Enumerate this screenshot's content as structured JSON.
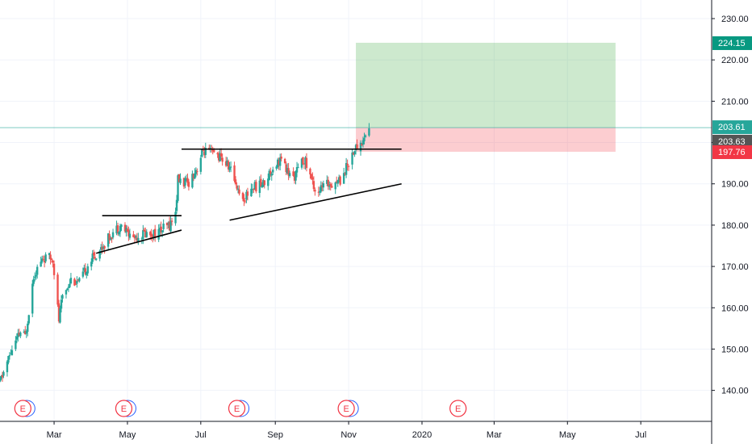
{
  "chart_data": {
    "type": "candlestick",
    "symbol": "",
    "y_axis": {
      "ticks": [
        "140.00",
        "150.00",
        "160.00",
        "170.00",
        "180.00",
        "190.00",
        "200.00",
        "210.00",
        "220.00",
        "230.00"
      ],
      "range": [
        132.5,
        234.5
      ]
    },
    "x_axis": {
      "ticks": [
        "Mar",
        "May",
        "Jul",
        "Sep",
        "Nov",
        "2020",
        "Mar",
        "May",
        "Jul"
      ]
    },
    "price_labels": [
      {
        "value": 224.15,
        "text": "224.15",
        "color": "#089981"
      },
      {
        "value": 203.61,
        "text": "203.61",
        "color": "#26a69a"
      },
      {
        "value": 203.63,
        "text": "203.63",
        "color": "#555555"
      },
      {
        "value": 197.76,
        "text": "197.76",
        "color": "#f23645"
      }
    ],
    "trade_box": {
      "entry": 203.63,
      "target": 224.15,
      "stop": 197.76,
      "start": "2019-11-07",
      "end": "2020-06-10"
    },
    "trendlines": [
      {
        "name": "resistance-may",
        "points": [
          [
            "2019-04-10",
            182.3
          ],
          [
            "2019-06-15",
            182.3
          ]
        ]
      },
      {
        "name": "support-may",
        "points": [
          [
            "2019-04-05",
            173.2
          ],
          [
            "2019-06-15",
            178.8
          ]
        ]
      },
      {
        "name": "resistance-main",
        "points": [
          [
            "2019-06-15",
            198.4
          ],
          [
            "2019-12-15",
            198.4
          ]
        ]
      },
      {
        "name": "support-main",
        "points": [
          [
            "2019-07-25",
            181.2
          ],
          [
            "2019-12-15",
            190.0
          ]
        ]
      }
    ],
    "earnings_markers": [
      {
        "label": "E",
        "date": "2019-02-03",
        "color": "#f23645"
      },
      {
        "label": "E",
        "date": "2019-04-28",
        "color": "#f23645"
      },
      {
        "label": "E",
        "date": "2019-07-31",
        "color": "#f23645"
      },
      {
        "label": "E",
        "date": "2019-10-30",
        "color": "#f23645"
      },
      {
        "label": "E",
        "date": "2020-01-31",
        "color": "#f23645"
      }
    ],
    "price_path": [
      [
        "2019-01-15",
        142
      ],
      [
        "2019-01-25",
        150
      ],
      [
        "2019-02-01",
        154
      ],
      [
        "2019-02-05",
        153
      ],
      [
        "2019-02-12",
        168
      ],
      [
        "2019-02-20",
        172
      ],
      [
        "2019-02-28",
        172
      ],
      [
        "2019-03-05",
        157
      ],
      [
        "2019-03-08",
        163
      ],
      [
        "2019-03-15",
        167
      ],
      [
        "2019-03-22",
        166
      ],
      [
        "2019-03-30",
        171
      ],
      [
        "2019-04-08",
        174
      ],
      [
        "2019-04-18",
        178
      ],
      [
        "2019-04-25",
        180
      ],
      [
        "2019-05-05",
        177
      ],
      [
        "2019-05-15",
        178
      ],
      [
        "2019-05-25",
        178
      ],
      [
        "2019-06-05",
        180
      ],
      [
        "2019-06-10",
        183
      ],
      [
        "2019-06-12",
        191
      ],
      [
        "2019-06-20",
        190
      ],
      [
        "2019-06-28",
        194
      ],
      [
        "2019-07-03",
        198
      ],
      [
        "2019-07-15",
        197
      ],
      [
        "2019-07-25",
        194
      ],
      [
        "2019-08-05",
        186
      ],
      [
        "2019-08-12",
        189
      ],
      [
        "2019-08-22",
        190
      ],
      [
        "2019-08-30",
        194
      ],
      [
        "2019-09-05",
        196
      ],
      [
        "2019-09-15",
        191
      ],
      [
        "2019-09-25",
        196
      ],
      [
        "2019-10-05",
        188
      ],
      [
        "2019-10-15",
        190
      ],
      [
        "2019-10-25",
        191
      ],
      [
        "2019-10-30",
        194
      ],
      [
        "2019-11-05",
        198
      ],
      [
        "2019-11-12",
        200
      ],
      [
        "2019-11-18",
        203.6
      ]
    ]
  },
  "colors": {
    "up": "#26a69a",
    "down": "#ef5350",
    "grid": "#f0f3fa",
    "axis_text": "#131722",
    "profit_fill": "rgba(76,175,80,0.28)",
    "loss_fill": "rgba(242,54,69,0.25)"
  }
}
